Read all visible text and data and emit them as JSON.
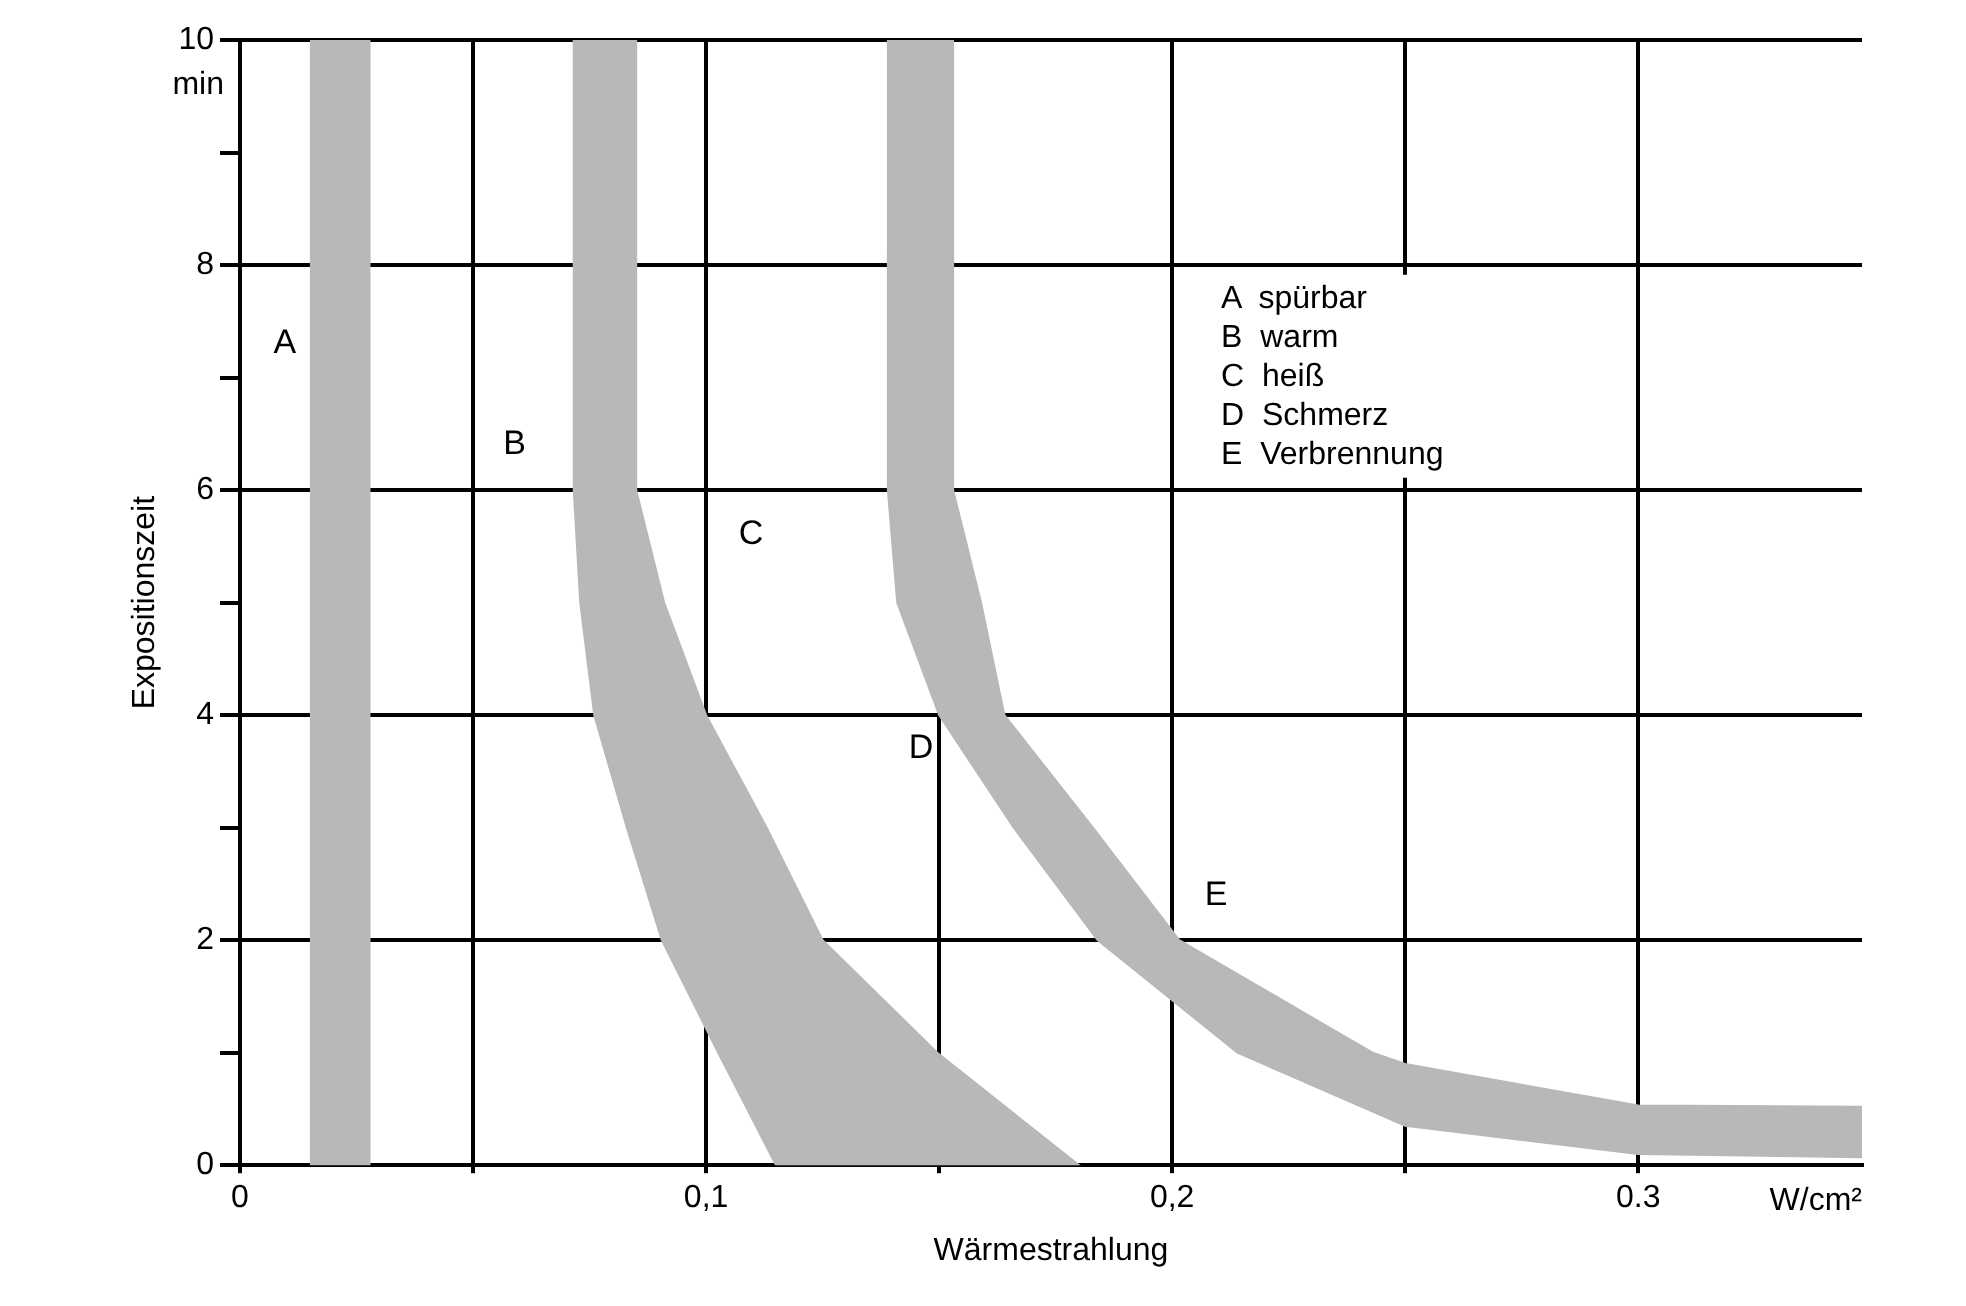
{
  "chart_data": {
    "type": "area",
    "xlabel": "Wärmestrahlung",
    "ylabel": "Expositionszeit",
    "xlim": [
      0,
      0.348
    ],
    "ylim": [
      0,
      10
    ],
    "xticks": [
      0,
      {
        "value": 0.05,
        "label": null
      },
      {
        "value": 0.1,
        "label": "0,1"
      },
      {
        "value": 0.15,
        "label": null
      },
      {
        "value": 0.2,
        "label": "0,2"
      },
      {
        "value": 0.25,
        "label": null
      },
      {
        "value": 0.3,
        "label": "0.3"
      }
    ],
    "yticks": [
      0,
      {
        "value": 1,
        "label": null
      },
      2,
      {
        "value": 3,
        "label": null
      },
      4,
      {
        "value": 5,
        "label": null
      },
      6,
      {
        "value": 7,
        "label": null
      },
      8,
      {
        "value": 9,
        "label": null
      },
      10
    ],
    "grid": true,
    "series": [
      {
        "color": "#b8b8b8",
        "x": [
          0.0716,
          0.0716,
          0.073,
          0.076,
          0.083,
          0.0905,
          0.1026,
          0.115,
          0.18,
          0.1496,
          0.125,
          0.113,
          0.1,
          0.091,
          0.085,
          0.085
        ],
        "values": [
          10,
          6,
          5,
          4,
          3,
          2,
          1,
          0,
          0,
          1,
          2,
          3,
          4,
          5,
          6,
          10
        ]
      },
      {
        "color": "#b8b8b8",
        "x": [
          0.139,
          0.139,
          0.141,
          0.15,
          0.166,
          0.184,
          0.214,
          0.25,
          0.3,
          0.348,
          0.348,
          0.3,
          0.25,
          0.243,
          0.2015,
          0.183,
          0.164,
          0.159,
          0.153,
          0.153
        ],
        "values": [
          10,
          6,
          5,
          4,
          3,
          2,
          1,
          0.35,
          0.1,
          0.07,
          0.52,
          0.53,
          0.9,
          1,
          2,
          3,
          4,
          5,
          6,
          10
        ]
      }
    ],
    "bands": [
      {
        "axis": "x",
        "from": 0.015,
        "to": 0.028,
        "color": "#b8b8b8"
      }
    ],
    "annotations": [
      "A",
      "B",
      "C",
      "D",
      "E",
      "A  spürbar",
      "B  warm",
      "C  heiß",
      "D  Schmerz",
      "E  Verbrennung",
      "min",
      "W/cm²"
    ]
  }
}
